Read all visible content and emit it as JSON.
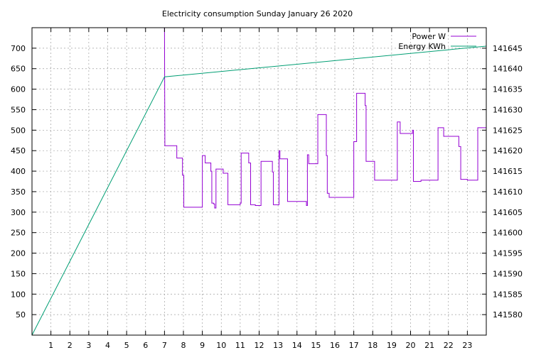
{
  "chart_data": {
    "type": "line",
    "title": "Electricity consumption Sunday January 26 2020",
    "xlim": [
      0,
      24
    ],
    "ylim": [
      0,
      750
    ],
    "y2lim": [
      141575,
      141650
    ],
    "x_ticks": [
      1,
      2,
      3,
      4,
      5,
      6,
      7,
      8,
      9,
      10,
      11,
      12,
      13,
      14,
      15,
      16,
      17,
      18,
      19,
      20,
      21,
      22,
      23
    ],
    "y_ticks": [
      50,
      100,
      150,
      200,
      250,
      300,
      350,
      400,
      450,
      500,
      550,
      600,
      650,
      700
    ],
    "y2_ticks": [
      141580,
      141585,
      141590,
      141595,
      141600,
      141605,
      141610,
      141615,
      141620,
      141625,
      141630,
      141635,
      141640,
      141645
    ],
    "grid": true,
    "legend_position": "top-right",
    "series": [
      {
        "name": "Power W",
        "axis": "left",
        "color": "#9400d3",
        "step": true,
        "points": [
          [
            7.0,
            750
          ],
          [
            7.02,
            462
          ],
          [
            7.65,
            462
          ],
          [
            7.65,
            432
          ],
          [
            7.95,
            432
          ],
          [
            7.95,
            390
          ],
          [
            8.02,
            390
          ],
          [
            8.02,
            312
          ],
          [
            9.0,
            312
          ],
          [
            9.0,
            438
          ],
          [
            9.15,
            438
          ],
          [
            9.15,
            420
          ],
          [
            9.45,
            420
          ],
          [
            9.45,
            400
          ],
          [
            9.5,
            400
          ],
          [
            9.5,
            322
          ],
          [
            9.6,
            322
          ],
          [
            9.6,
            320
          ],
          [
            9.65,
            320
          ],
          [
            9.65,
            310
          ],
          [
            9.72,
            310
          ],
          [
            9.72,
            405
          ],
          [
            10.1,
            405
          ],
          [
            10.1,
            395
          ],
          [
            10.35,
            395
          ],
          [
            10.35,
            318
          ],
          [
            11.0,
            318
          ],
          [
            11.0,
            322
          ],
          [
            11.05,
            322
          ],
          [
            11.05,
            444
          ],
          [
            11.45,
            444
          ],
          [
            11.45,
            420
          ],
          [
            11.55,
            420
          ],
          [
            11.55,
            318
          ],
          [
            11.8,
            318
          ],
          [
            11.8,
            316
          ],
          [
            12.1,
            316
          ],
          [
            12.1,
            424
          ],
          [
            12.7,
            424
          ],
          [
            12.7,
            398
          ],
          [
            12.75,
            398
          ],
          [
            12.75,
            318
          ],
          [
            13.05,
            318
          ],
          [
            13.05,
            450
          ],
          [
            13.1,
            450
          ],
          [
            13.1,
            430
          ],
          [
            13.5,
            430
          ],
          [
            13.5,
            326
          ],
          [
            14.5,
            326
          ],
          [
            14.5,
            316
          ],
          [
            14.55,
            316
          ],
          [
            14.55,
            440
          ],
          [
            14.62,
            440
          ],
          [
            14.62,
            418
          ],
          [
            15.1,
            418
          ],
          [
            15.1,
            538
          ],
          [
            15.55,
            538
          ],
          [
            15.55,
            438
          ],
          [
            15.6,
            438
          ],
          [
            15.6,
            346
          ],
          [
            15.7,
            346
          ],
          [
            15.7,
            336
          ],
          [
            17.0,
            336
          ],
          [
            17.0,
            472
          ],
          [
            17.15,
            472
          ],
          [
            17.15,
            590
          ],
          [
            17.6,
            590
          ],
          [
            17.6,
            560
          ],
          [
            17.65,
            560
          ],
          [
            17.65,
            424
          ],
          [
            18.1,
            424
          ],
          [
            18.1,
            378
          ],
          [
            19.3,
            378
          ],
          [
            19.3,
            520
          ],
          [
            19.45,
            520
          ],
          [
            19.45,
            492
          ],
          [
            20.1,
            492
          ],
          [
            20.1,
            500
          ],
          [
            20.15,
            500
          ],
          [
            20.15,
            375
          ],
          [
            20.55,
            375
          ],
          [
            20.55,
            378
          ],
          [
            21.45,
            378
          ],
          [
            21.45,
            506
          ],
          [
            21.75,
            506
          ],
          [
            21.75,
            485
          ],
          [
            22.55,
            485
          ],
          [
            22.55,
            460
          ],
          [
            22.65,
            460
          ],
          [
            22.65,
            380
          ],
          [
            23.0,
            380
          ],
          [
            23.0,
            378
          ],
          [
            23.55,
            378
          ],
          [
            23.55,
            506
          ],
          [
            24.0,
            506
          ]
        ]
      },
      {
        "name": "Energy KWh",
        "axis": "right",
        "color": "#009e73",
        "step": false,
        "points": [
          [
            0,
            141575
          ],
          [
            7.0,
            141638
          ],
          [
            24,
            141645.5
          ]
        ]
      }
    ]
  }
}
